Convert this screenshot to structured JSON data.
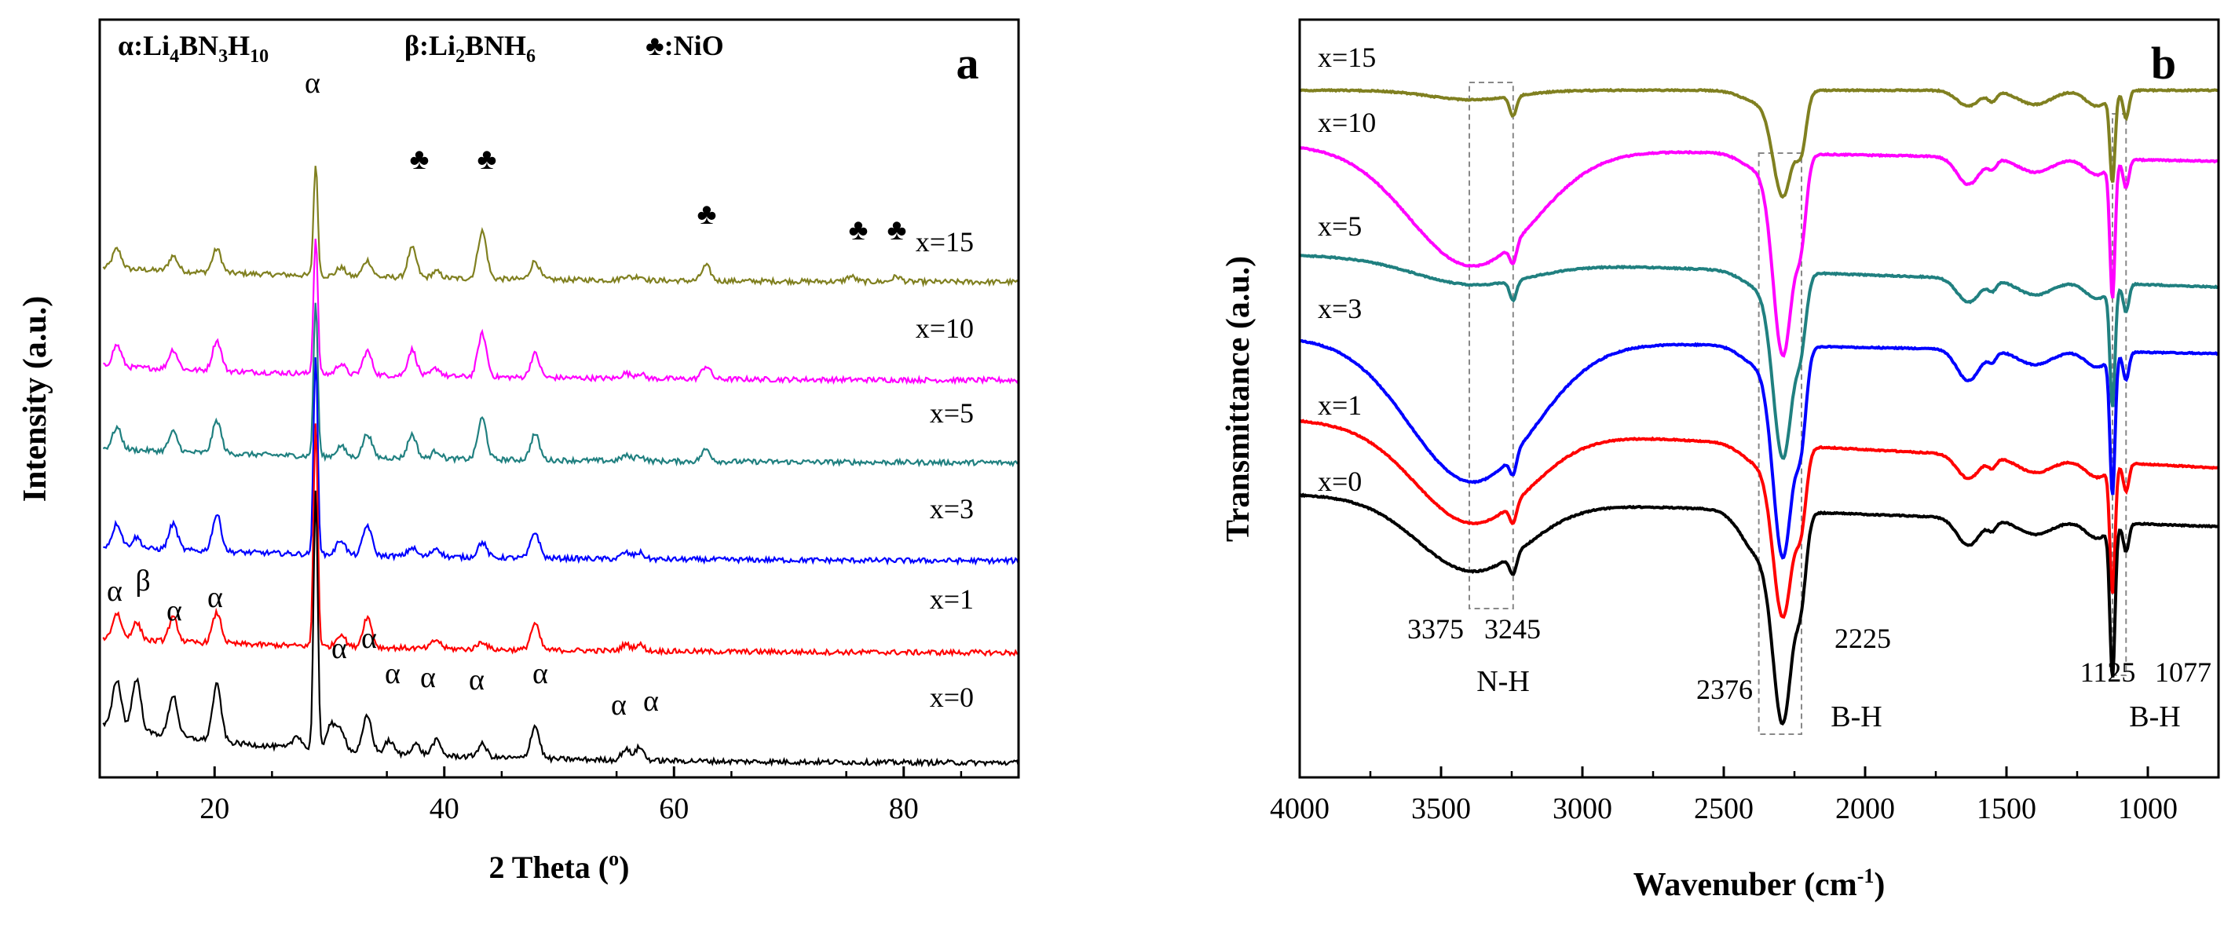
{
  "chart_data": [
    {
      "type": "line",
      "panel_label": "a",
      "xlabel": "2 Theta (",
      "xlabel_sup": "o",
      "xlabel_end": ")",
      "ylabel": "Intensity (a.u.)",
      "xlim": [
        10,
        90
      ],
      "x_ticks": [
        20,
        40,
        60,
        80
      ],
      "y_ticks_shown": false,
      "legend_text": {
        "alpha": {
          "prefix": "α:Li",
          "s1": "4",
          "m1": "BN",
          "s2": "3",
          "m2": "H",
          "s3": "10"
        },
        "beta": {
          "prefix": "β:Li",
          "s1": "2",
          "m1": "BNH",
          "s2": "6"
        },
        "nio": "♣:NiO"
      },
      "series": [
        {
          "name": "x=15",
          "color": "#808020",
          "peaks": [
            [
              11.5,
              0.45
            ],
            [
              16.4,
              0.35
            ],
            [
              20.2,
              0.55
            ],
            [
              28.8,
              2.6
            ],
            [
              31.0,
              0.2
            ],
            [
              33.3,
              0.38
            ],
            [
              37.2,
              0.68
            ],
            [
              39.3,
              0.15
            ],
            [
              43.3,
              1.1
            ],
            [
              47.9,
              0.42
            ],
            [
              55.8,
              0.1
            ],
            [
              57.0,
              0.1
            ],
            [
              62.8,
              0.35
            ],
            [
              75.4,
              0.12
            ],
            [
              79.4,
              0.12
            ]
          ]
        },
        {
          "name": "x=10",
          "color": "#ff00ff",
          "peaks": [
            [
              11.5,
              0.5
            ],
            [
              16.4,
              0.45
            ],
            [
              20.2,
              0.7
            ],
            [
              28.8,
              3.2
            ],
            [
              31.0,
              0.25
            ],
            [
              33.3,
              0.55
            ],
            [
              37.2,
              0.6
            ],
            [
              39.3,
              0.18
            ],
            [
              43.3,
              1.0
            ],
            [
              47.9,
              0.55
            ],
            [
              55.8,
              0.12
            ],
            [
              57.0,
              0.12
            ],
            [
              62.8,
              0.3
            ]
          ]
        },
        {
          "name": "x=5",
          "color": "#208080",
          "peaks": [
            [
              11.5,
              0.5
            ],
            [
              16.4,
              0.45
            ],
            [
              20.2,
              0.75
            ],
            [
              28.8,
              3.6
            ],
            [
              31.0,
              0.25
            ],
            [
              33.3,
              0.55
            ],
            [
              37.2,
              0.55
            ],
            [
              39.3,
              0.18
            ],
            [
              43.3,
              0.95
            ],
            [
              47.9,
              0.6
            ],
            [
              55.8,
              0.12
            ],
            [
              57.0,
              0.12
            ],
            [
              62.8,
              0.28
            ]
          ]
        },
        {
          "name": "x=3",
          "color": "#0000ff",
          "peaks": [
            [
              11.5,
              0.55
            ],
            [
              13.2,
              0.25
            ],
            [
              16.4,
              0.6
            ],
            [
              20.2,
              0.85
            ],
            [
              28.8,
              4.6
            ],
            [
              31.0,
              0.35
            ],
            [
              33.3,
              0.7
            ],
            [
              37.2,
              0.2
            ],
            [
              39.3,
              0.2
            ],
            [
              43.3,
              0.35
            ],
            [
              47.9,
              0.6
            ],
            [
              55.8,
              0.15
            ],
            [
              57.0,
              0.15
            ]
          ]
        },
        {
          "name": "x=1",
          "color": "#ff0000",
          "peaks": [
            [
              11.5,
              0.6
            ],
            [
              13.2,
              0.4
            ],
            [
              16.4,
              0.55
            ],
            [
              20.2,
              0.7
            ],
            [
              28.8,
              5.2
            ],
            [
              31.0,
              0.3
            ],
            [
              33.3,
              0.7
            ],
            [
              39.3,
              0.2
            ],
            [
              43.3,
              0.18
            ],
            [
              47.9,
              0.6
            ],
            [
              55.8,
              0.15
            ],
            [
              57.0,
              0.15
            ]
          ]
        },
        {
          "name": "x=0",
          "color": "#000000",
          "peaks": [
            [
              11.5,
              1.1
            ],
            [
              13.2,
              1.2
            ],
            [
              16.4,
              0.95
            ],
            [
              20.2,
              1.3
            ],
            [
              27.2,
              0.3
            ],
            [
              28.8,
              6.0
            ],
            [
              30.1,
              0.6
            ],
            [
              31.0,
              0.5
            ],
            [
              33.3,
              0.85
            ],
            [
              35.2,
              0.3
            ],
            [
              37.5,
              0.25
            ],
            [
              39.3,
              0.35
            ],
            [
              43.3,
              0.3
            ],
            [
              47.9,
              0.75
            ],
            [
              55.8,
              0.25
            ],
            [
              57.0,
              0.3
            ]
          ]
        }
      ],
      "annotations": {
        "alpha_symbol": "α",
        "beta_symbol": "β",
        "nio_symbol": "♣"
      }
    },
    {
      "type": "line",
      "panel_label": "b",
      "xlabel": "Wavenuber (cm",
      "xlabel_sup": "-1",
      "xlabel_end": ")",
      "ylabel": "Transmittance (a.u.)",
      "xlim": [
        4000,
        750
      ],
      "x_ticks": [
        4000,
        3500,
        3000,
        2500,
        2000,
        1500,
        1000
      ],
      "y_ticks_shown": false,
      "series": [
        {
          "name": "x=15",
          "color": "#808020"
        },
        {
          "name": "x=10",
          "color": "#ff00ff"
        },
        {
          "name": "x=5",
          "color": "#208080"
        },
        {
          "name": "x=3",
          "color": "#0000ff"
        },
        {
          "name": "x=1",
          "color": "#ff0000"
        },
        {
          "name": "x=0",
          "color": "#000000"
        }
      ],
      "peak_labels": [
        "3375",
        "3245",
        "2376",
        "2225",
        "1125",
        "1077"
      ],
      "band_labels": [
        "N-H",
        "B-H",
        "B-H"
      ]
    }
  ]
}
